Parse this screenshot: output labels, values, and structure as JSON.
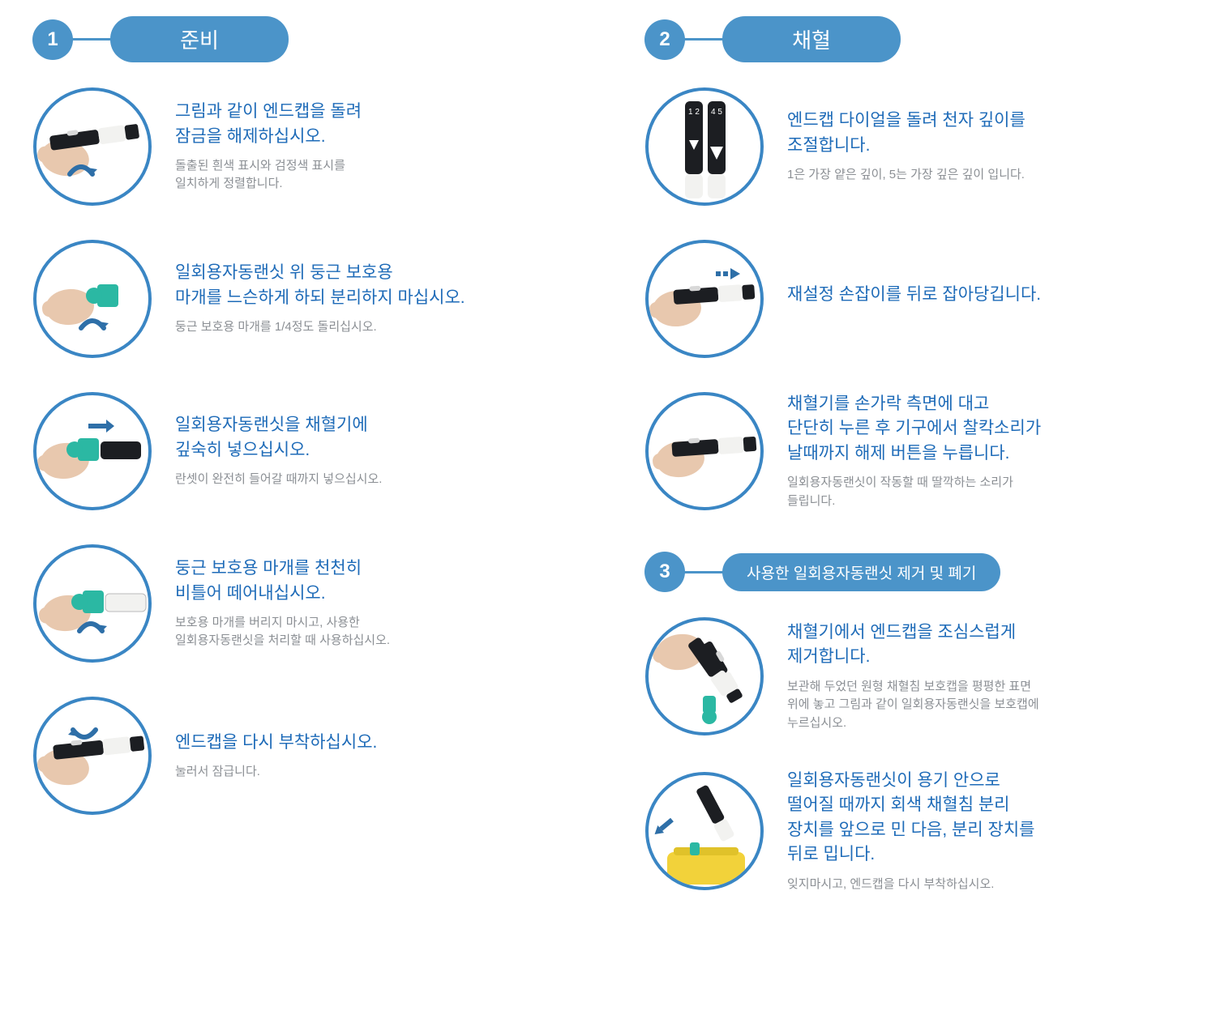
{
  "colors": {
    "accent": "#4b94c9",
    "title_text": "#1e6bb8",
    "sub_text": "#8b8f94",
    "thumb_border": "#3a86c4",
    "thumb_bg": "#ffffff",
    "device_body": "#1c1e22",
    "device_white": "#f2f2f0",
    "skin": "#e8c8ae",
    "lancet_teal": "#2bb8a3",
    "yellow_bin": "#f2d23a",
    "arrow_blue": "#2e6fa8"
  },
  "sections": [
    {
      "num": "1",
      "label": "준비",
      "label_size": "large",
      "steps": [
        {
          "img": "twist_cap",
          "title": "그림과 같이 엔드캡을 돌려\n잠금을 해제하십시오.",
          "sub": "돌출된 흰색 표시와 검정색 표시를\n일치하게 정렬합니다."
        },
        {
          "img": "loosen_cap",
          "title": "일회용자동랜싯 위 둥근 보호용\n마개를 느슨하게 하되 분리하지 마십시오.",
          "sub": "둥근 보호용 마개를 1/4정도 돌리십시오."
        },
        {
          "img": "insert_lancet",
          "title": "일회용자동랜싯을 채혈기에\n깊숙히 넣으십시오.",
          "sub": "란셋이 완전히 들어갈 때까지 넣으십시오."
        },
        {
          "img": "twist_off",
          "title": "둥근 보호용 마개를 천천히\n비틀어 떼어내십시오.",
          "sub": "보호용 마개를 버리지 마시고, 사용한\n일회용자동랜싯을 처리할 때 사용하십시오."
        },
        {
          "img": "reattach",
          "title": "엔드캡을 다시 부착하십시오.",
          "sub": "눌러서 잠급니다."
        }
      ]
    },
    {
      "num": "2",
      "label": "채혈",
      "label_size": "large",
      "steps": [
        {
          "img": "dial",
          "title": "엔드캡 다이얼을 돌려 천자 깊이를\n조절합니다.",
          "sub": "1은 가장 얕은 깊이, 5는 가장 깊은 깊이 입니다."
        },
        {
          "img": "cock",
          "title": "재설정 손잡이를 뒤로 잡아당깁니다.",
          "sub": ""
        },
        {
          "img": "press",
          "title": "채혈기를 손가락 측면에 대고\n단단히 누른 후 기구에서 찰칵소리가\n날때까지 해제 버튼을 누릅니다.",
          "sub": "일회용자동랜싯이 작동할 때 딸깍하는 소리가\n들립니다."
        }
      ]
    },
    {
      "num": "3",
      "label": "사용한 일회용자동랜싯 제거 및 폐기",
      "label_size": "small",
      "steps": [
        {
          "img": "remove_cap",
          "title": "채혈기에서 엔드캡을 조심스럽게\n제거합니다.",
          "sub": "보관해 두었던 원형 채혈침 보호캡을 평평한 표면\n 위에 놓고 그림과 같이 일회용자동랜싯을 보호캡에\n누르십시오."
        },
        {
          "img": "eject",
          "title": "일회용자동랜싯이 용기 안으로\n떨어질 때까지 회색 채혈침 분리\n장치를 앞으로 민 다음, 분리 장치를\n뒤로 밉니다.",
          "sub": "잊지마시고, 엔드캡을 다시 부착하십시오."
        }
      ]
    }
  ]
}
